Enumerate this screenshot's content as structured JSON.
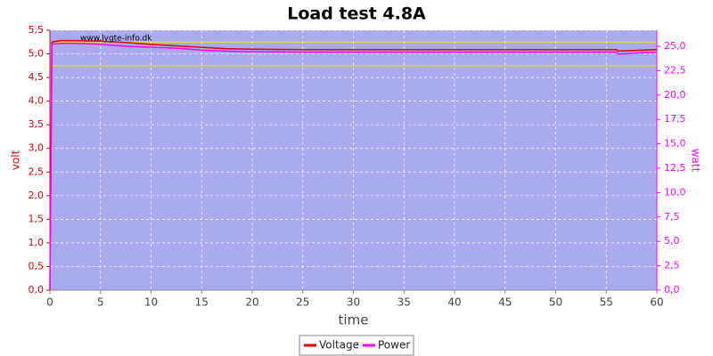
{
  "chart_data": {
    "type": "line",
    "title": "Load test 4.8A",
    "annotation": "www.lygte-info.dk",
    "xlabel": "time",
    "ylabel": "volt",
    "y2label": "watt",
    "x": [
      0,
      0.2,
      1,
      2.5,
      5,
      7.5,
      10,
      12.5,
      15,
      17.5,
      20,
      25,
      30,
      35,
      40,
      45,
      50,
      55,
      56,
      56.2,
      60
    ],
    "series": [
      {
        "name": "Voltage",
        "color": "#e00000",
        "axis": "y",
        "values": [
          0,
          5.25,
          5.28,
          5.28,
          5.27,
          5.24,
          5.2,
          5.17,
          5.14,
          5.11,
          5.1,
          5.09,
          5.09,
          5.09,
          5.09,
          5.09,
          5.09,
          5.09,
          5.09,
          5.06,
          5.09
        ]
      },
      {
        "name": "Power",
        "color": "#ff00ff",
        "axis": "y2",
        "values": [
          0,
          25.2,
          25.3,
          25.3,
          25.2,
          25.0,
          24.9,
          24.8,
          24.6,
          24.5,
          24.45,
          24.4,
          24.4,
          24.4,
          24.4,
          24.4,
          24.4,
          24.4,
          24.4,
          24.2,
          24.4
        ]
      }
    ],
    "reference_lines": [
      5.25,
      4.75
    ],
    "reference_color": "#e8e800",
    "xlim": [
      0,
      60
    ],
    "xticks": [
      0,
      5,
      10,
      15,
      20,
      25,
      30,
      35,
      40,
      45,
      50,
      55,
      60
    ],
    "ylim": [
      0,
      5.5
    ],
    "yticks": [
      {
        "value": 0,
        "label": "0,0"
      },
      {
        "value": 0.5,
        "label": "0,5"
      },
      {
        "value": 1,
        "label": "1,0"
      },
      {
        "value": 1.5,
        "label": "1,5"
      },
      {
        "value": 2,
        "label": "2,0"
      },
      {
        "value": 2.5,
        "label": "2,5"
      },
      {
        "value": 3,
        "label": "3,0"
      },
      {
        "value": 3.5,
        "label": "3,5"
      },
      {
        "value": 4,
        "label": "4,0"
      },
      {
        "value": 4.5,
        "label": "4,5"
      },
      {
        "value": 5,
        "label": "5,0"
      },
      {
        "value": 5.5,
        "label": "5,5"
      }
    ],
    "y2lim": [
      0,
      26.64
    ],
    "y2ticks": [
      {
        "value": 0,
        "label": "0,0"
      },
      {
        "value": 2.5,
        "label": "2,5"
      },
      {
        "value": 5,
        "label": "5,0"
      },
      {
        "value": 7.5,
        "label": "7,5"
      },
      {
        "value": 10,
        "label": "10,0"
      },
      {
        "value": 12.5,
        "label": "12,5"
      },
      {
        "value": 15,
        "label": "15,0"
      },
      {
        "value": 17.5,
        "label": "17,5"
      },
      {
        "value": 20,
        "label": "20,0"
      },
      {
        "value": 22.5,
        "label": "22,5"
      },
      {
        "value": 25,
        "label": "25,0"
      }
    ],
    "grid": true,
    "legend": "bottom",
    "background": "#aaaaee"
  }
}
